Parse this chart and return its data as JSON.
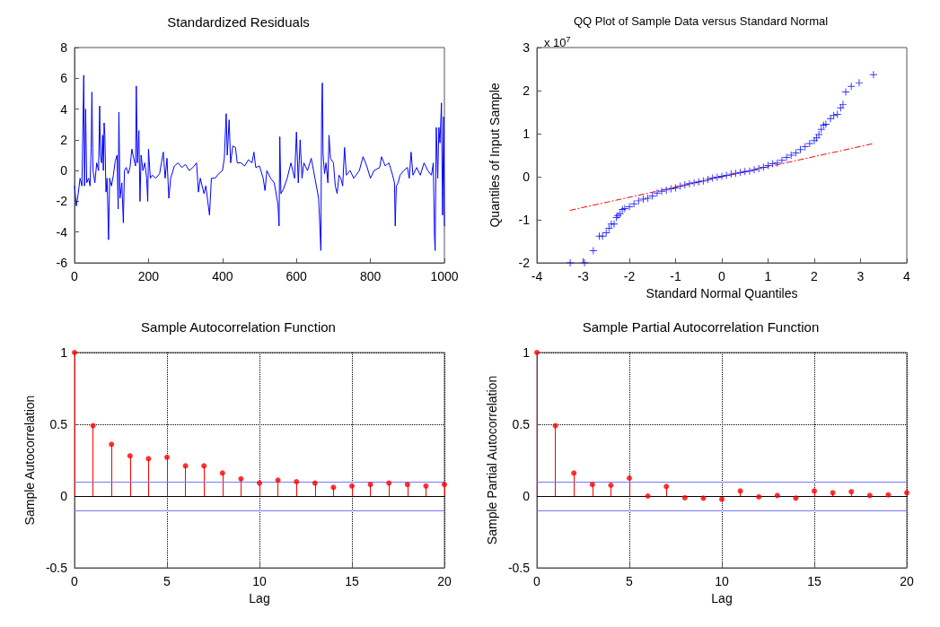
{
  "chart_data": [
    {
      "type": "line",
      "title": "Standardized Residuals",
      "marker": "none",
      "grid": false,
      "xlim": [
        0,
        1000
      ],
      "xticks": [
        0,
        200,
        400,
        600,
        800,
        1000
      ],
      "ylim": [
        -6,
        8
      ],
      "yticks": [
        -6,
        -4,
        -2,
        0,
        2,
        4,
        6,
        8
      ],
      "series": [
        {
          "color": "#0000ff",
          "x": [
            0,
            5,
            10,
            15,
            20,
            25,
            27,
            30,
            33,
            38,
            42,
            45,
            47,
            50,
            55,
            60,
            65,
            68,
            70,
            73,
            76,
            78,
            80,
            82,
            85,
            88,
            92,
            95,
            100,
            105,
            110,
            115,
            118,
            120,
            123,
            128,
            132,
            135,
            140,
            145,
            150,
            155,
            160,
            165,
            167,
            170,
            174,
            177,
            180,
            185,
            190,
            195,
            198,
            200,
            205,
            210,
            220,
            230,
            240,
            245,
            250,
            255,
            260,
            270,
            280,
            290,
            300,
            310,
            320,
            330,
            335,
            340,
            350,
            355,
            365,
            370,
            380,
            390,
            400,
            405,
            410,
            413,
            418,
            422,
            428,
            435,
            440,
            450,
            460,
            470,
            480,
            485,
            490,
            500,
            510,
            515,
            520,
            530,
            540,
            550,
            553,
            555,
            558,
            565,
            575,
            585,
            595,
            600,
            605,
            610,
            615,
            620,
            630,
            640,
            650,
            660,
            666,
            668,
            670,
            672,
            676,
            680,
            685,
            688,
            692,
            700,
            705,
            710,
            715,
            720,
            725,
            730,
            735,
            745,
            755,
            770,
            780,
            790,
            800,
            810,
            825,
            830,
            840,
            850,
            855,
            860,
            865,
            867,
            870,
            875,
            880,
            890,
            900,
            905,
            910,
            915,
            925,
            935,
            945,
            955,
            965,
            970,
            973,
            975,
            978,
            982,
            985,
            988,
            992,
            995,
            998,
            1000
          ],
          "values": [
            -1,
            -2.3,
            -1.5,
            -0.5,
            -1,
            6.2,
            -1,
            4,
            -0.8,
            -0.5,
            -1,
            1.5,
            5.1,
            0,
            -0.8,
            0.5,
            0,
            4.2,
            1,
            0.5,
            2.3,
            0,
            3.1,
            2.3,
            -1.4,
            -0.5,
            -4.5,
            -0.5,
            -1,
            -0.3,
            0.6,
            1,
            -2.5,
            3.8,
            -1.8,
            -0.8,
            -3.4,
            0,
            0.2,
            -0.2,
            0.2,
            1.4,
            0.8,
            0.3,
            5.5,
            0.5,
            2.6,
            -2,
            1,
            0,
            0.5,
            -0.5,
            -2,
            1.4,
            -0.5,
            -0.3,
            -0.5,
            -0.2,
            1.2,
            -0.5,
            0.8,
            -1.8,
            -0.5,
            0.3,
            0.5,
            0.2,
            0.4,
            0,
            0.2,
            0.5,
            -1.4,
            -0.5,
            -1.5,
            -1,
            -2.9,
            -0.5,
            -0.5,
            -0.2,
            0,
            0.8,
            3.7,
            1,
            3.3,
            0.5,
            1.6,
            1.5,
            0.5,
            0.5,
            0.3,
            0.7,
            0.5,
            1.2,
            0.2,
            0.3,
            -0.5,
            -1.3,
            0,
            -0.5,
            -0.8,
            -2.2,
            -3.6,
            2.2,
            -1.5,
            -1.2,
            -0.5,
            0.5,
            -0.5,
            2.5,
            -0.8,
            2,
            -0.5,
            0.5,
            0,
            0.8,
            -0.5,
            -1.8,
            -5.2,
            3.5,
            5.7,
            1,
            -0.2,
            0.5,
            -0.8,
            2.3,
            0.8,
            0.5,
            -1,
            -1.5,
            -0.3,
            -0.5,
            -1,
            1.5,
            -0.3,
            0,
            -0.5,
            0,
            0.9,
            0.3,
            -0.5,
            0,
            0.2,
            0.9,
            0.3,
            0.5,
            0.1,
            -0.3,
            -0.8,
            -3.6,
            -1,
            -0.8,
            -0.3,
            0,
            0.2,
            -0.5,
            1.2,
            -0.3,
            0.2,
            -0.3,
            0.5,
            0,
            -0.3,
            0.5,
            -4.2,
            -5.2,
            2.8,
            -0.5,
            2.8,
            1.8,
            4.4,
            -2.9,
            3.5,
            -3.6
          ]
        }
      ]
    },
    {
      "type": "scatter",
      "title": "QQ Plot of Sample Data versus Standard Normal",
      "xlabel": "Standard Normal Quantiles",
      "ylabel": "Quantiles of Input Sample",
      "annotations": [
        "x 10$^{7}$"
      ],
      "marker": "cross",
      "grid": false,
      "xlim": [
        -4,
        4
      ],
      "xticks": [
        -4,
        -3,
        -2,
        -1,
        0,
        1,
        2,
        3,
        4
      ],
      "ylim": [
        -2,
        3
      ],
      "yticks": [
        -2,
        -1,
        0,
        1,
        2,
        3
      ],
      "series": [
        {
          "color": "#0000ff",
          "x": [
            -3.28,
            -2.97,
            -2.78,
            -2.65,
            -2.58,
            -2.5,
            -2.44,
            -2.39,
            -2.33,
            -2.28,
            -2.25,
            -2.2,
            -2.15,
            -2.1,
            -2.0,
            -1.9,
            -1.8,
            -1.7,
            -1.6,
            -1.5,
            -1.4,
            -1.3,
            -1.2,
            -1.1,
            -1.0,
            -0.9,
            -0.8,
            -0.7,
            -0.6,
            -0.5,
            -0.4,
            -0.3,
            -0.2,
            -0.1,
            0,
            0.1,
            0.2,
            0.3,
            0.4,
            0.5,
            0.6,
            0.7,
            0.8,
            0.9,
            1.0,
            1.1,
            1.2,
            1.3,
            1.4,
            1.5,
            1.6,
            1.7,
            1.8,
            1.9,
            2.0,
            2.05,
            2.1,
            2.15,
            2.2,
            2.25,
            2.35,
            2.42,
            2.5,
            2.57,
            2.62,
            2.68,
            2.8,
            2.97,
            3.28
          ],
          "values": [
            -2.0,
            -2.0,
            -1.72,
            -1.38,
            -1.38,
            -1.3,
            -1.2,
            -1.1,
            -1.1,
            -0.95,
            -0.9,
            -0.86,
            -0.76,
            -0.74,
            -0.7,
            -0.63,
            -0.56,
            -0.52,
            -0.5,
            -0.45,
            -0.38,
            -0.34,
            -0.31,
            -0.28,
            -0.26,
            -0.22,
            -0.19,
            -0.16,
            -0.14,
            -0.12,
            -0.1,
            -0.06,
            -0.03,
            -0.01,
            0.01,
            0.03,
            0.06,
            0.08,
            0.1,
            0.12,
            0.13,
            0.16,
            0.19,
            0.22,
            0.26,
            0.3,
            0.32,
            0.38,
            0.45,
            0.5,
            0.55,
            0.63,
            0.7,
            0.77,
            0.84,
            0.9,
            0.98,
            1.1,
            1.2,
            1.22,
            1.35,
            1.42,
            1.45,
            1.6,
            1.68,
            1.97,
            2.1,
            2.18,
            2.37
          ]
        },
        {
          "type": "line",
          "color": "#ff0000",
          "line_style": "dashed",
          "marker": "none",
          "x": [
            -3.28,
            3.28
          ],
          "values": [
            -0.78,
            0.77
          ]
        }
      ]
    },
    {
      "type": "lollipop",
      "title": "Sample Autocorrelation Function",
      "xlabel": "Lag",
      "ylabel": "Sample Autocorrelation",
      "marker": "circle",
      "grid": true,
      "xlim": [
        0,
        20
      ],
      "xticks": [
        0,
        5,
        10,
        15,
        20
      ],
      "ylim": [
        -0.5,
        1
      ],
      "yticks": [
        -0.5,
        0,
        0.5,
        1
      ],
      "x": [
        0,
        1,
        2,
        3,
        4,
        5,
        6,
        7,
        8,
        9,
        10,
        11,
        12,
        13,
        14,
        15,
        16,
        17,
        18,
        19,
        20
      ],
      "series": [
        {
          "color": "#ff0000",
          "values": [
            1,
            0.49,
            0.36,
            0.28,
            0.26,
            0.27,
            0.21,
            0.21,
            0.16,
            0.12,
            0.09,
            0.11,
            0.1,
            0.09,
            0.06,
            0.07,
            0.08,
            0.09,
            0.08,
            0.07,
            0.08
          ]
        }
      ],
      "ref_lines": [
        {
          "axis": "y",
          "value": 0.1,
          "color": "#7777ff"
        },
        {
          "axis": "y",
          "value": -0.1,
          "color": "#7777ff"
        },
        {
          "axis": "y",
          "value": 0,
          "color": "#000000"
        }
      ]
    },
    {
      "type": "lollipop",
      "title": "Sample Partial Autocorrelation Function",
      "xlabel": "Lag",
      "ylabel": "Sample Partial Autocorrelation",
      "marker": "circle",
      "grid": true,
      "xlim": [
        0,
        20
      ],
      "xticks": [
        0,
        5,
        10,
        15,
        20
      ],
      "ylim": [
        -0.5,
        1
      ],
      "yticks": [
        -0.5,
        0,
        0.5,
        1
      ],
      "x": [
        0,
        1,
        2,
        3,
        4,
        5,
        6,
        7,
        8,
        9,
        10,
        11,
        12,
        13,
        14,
        15,
        16,
        17,
        18,
        19,
        20
      ],
      "series": [
        {
          "color": "#ff0000",
          "values": [
            1,
            0.49,
            0.16,
            0.08,
            0.075,
            0.125,
            0,
            0.067,
            -0.012,
            -0.015,
            -0.023,
            0.035,
            -0.006,
            0.004,
            -0.015,
            0.035,
            0.023,
            0.03,
            0.004,
            0.008,
            0.023
          ]
        }
      ],
      "ref_lines": [
        {
          "axis": "y",
          "value": 0.1,
          "color": "#7777ff"
        },
        {
          "axis": "y",
          "value": -0.1,
          "color": "#7777ff"
        },
        {
          "axis": "y",
          "value": 0,
          "color": "#000000"
        }
      ]
    }
  ]
}
